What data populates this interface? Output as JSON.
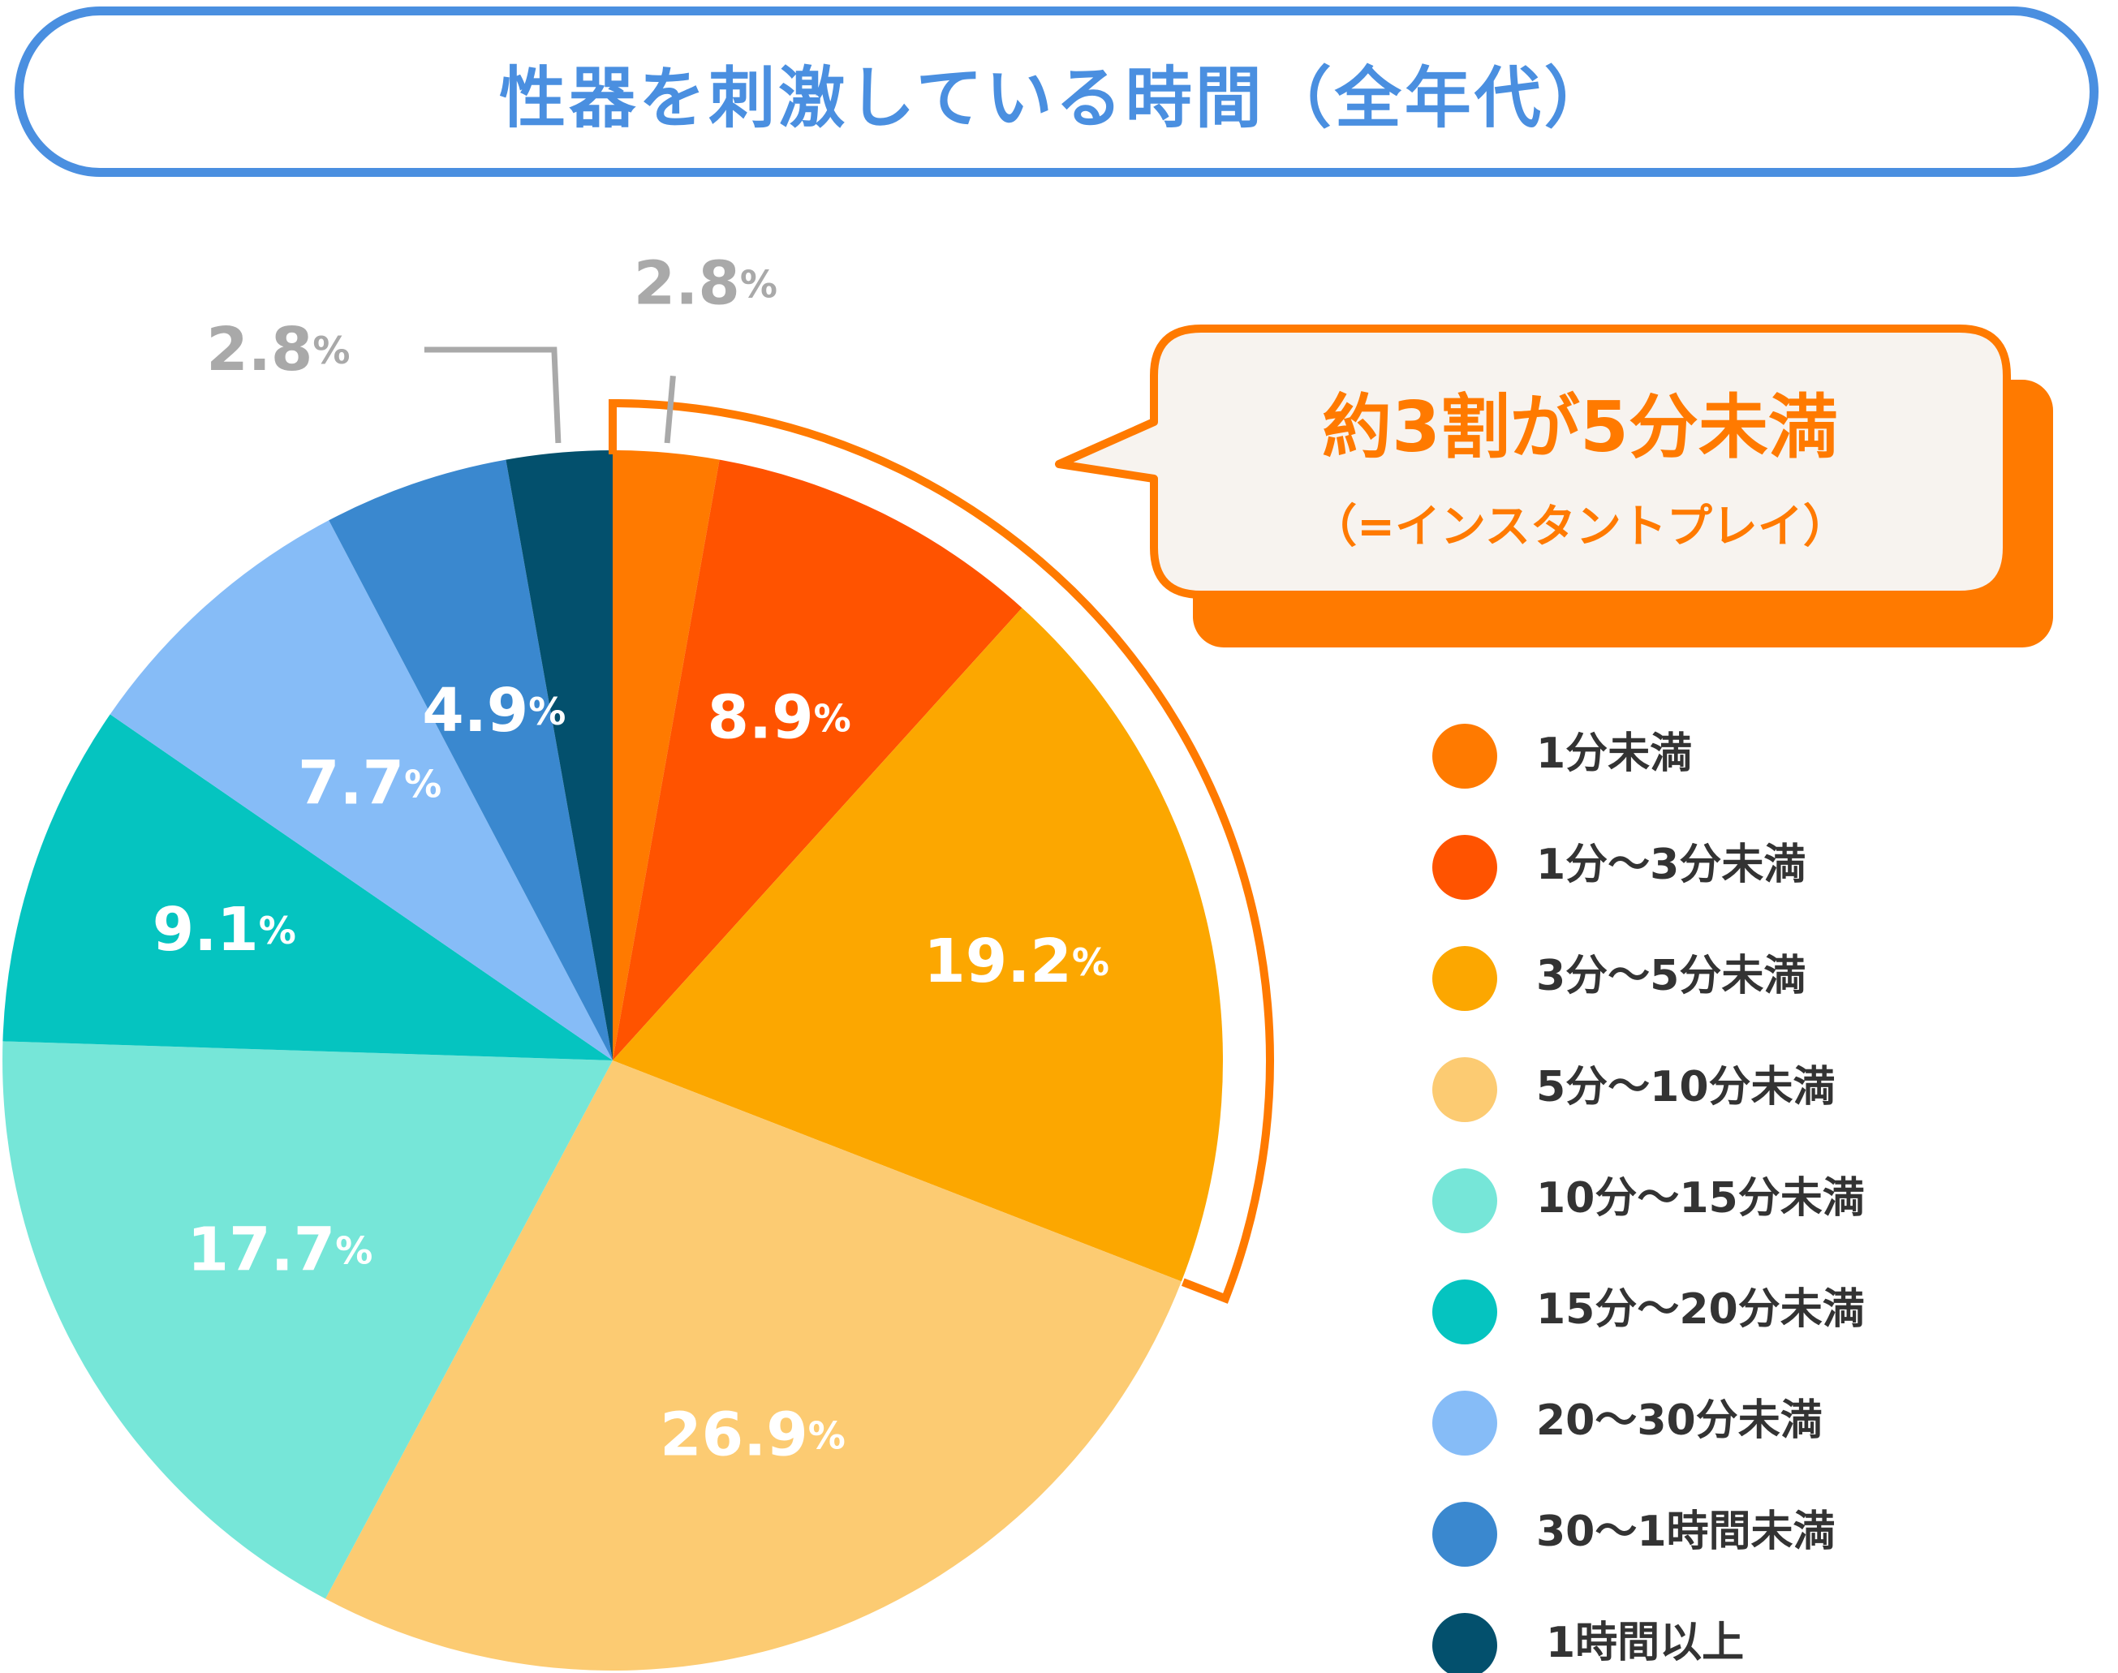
{
  "title": "性器を刺激している時間（全年代）",
  "callout": {
    "main": "約3割が5分未満",
    "sub": "（=インスタントプレイ）"
  },
  "chart_data": {
    "type": "pie",
    "title": "性器を刺激している時間（全年代）",
    "unit": "%",
    "categories": [
      "1分未満",
      "1分〜3分未満",
      "3分〜5分未満",
      "5分〜10分未満",
      "10分〜15分未満",
      "15分〜20分未満",
      "20〜30分未満",
      "30〜1時間未満",
      "1時間以上"
    ],
    "values": [
      2.8,
      8.9,
      19.2,
      26.9,
      17.7,
      9.1,
      7.7,
      4.9,
      2.8
    ],
    "value_labels": [
      "2.8",
      "8.9",
      "19.2",
      "26.9",
      "17.7",
      "9.1",
      "7.7",
      "4.9",
      "2.8"
    ],
    "colors": [
      "#ff7a00",
      "#ff5300",
      "#fca700",
      "#fccb72",
      "#76e6d8",
      "#05c4c0",
      "#86bcf7",
      "#3a88cf",
      "#03506d"
    ],
    "start": "top",
    "direction": "clockwise",
    "legend_position": "right",
    "highlight": "1分未満, 1分〜3分未満, 3分〜5分未満"
  }
}
